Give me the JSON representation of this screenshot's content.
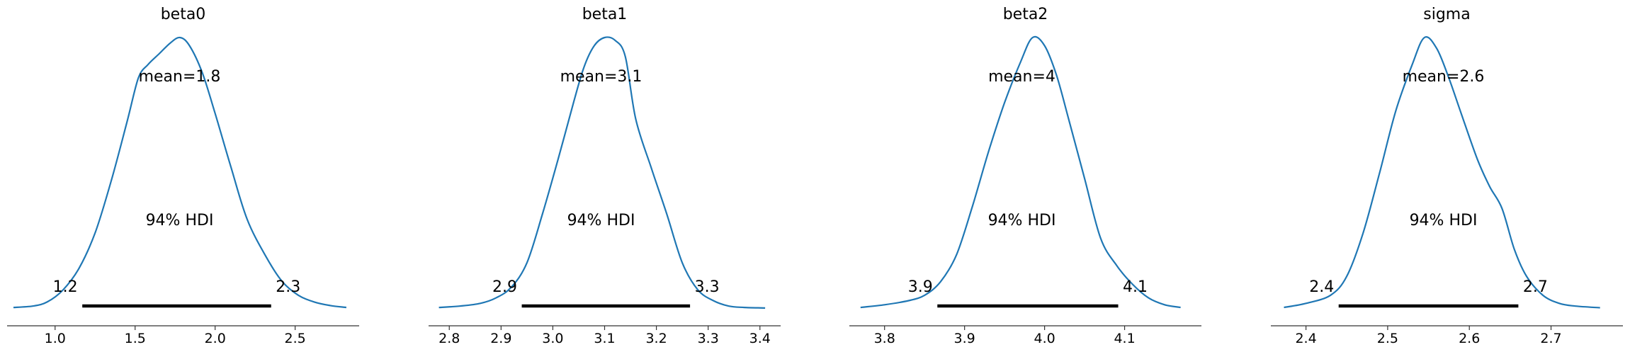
{
  "chart_data": [
    {
      "type": "line",
      "title": "beta0",
      "mean_label": "mean=1.8",
      "hdi_label": "94% HDI",
      "hdi": [
        1.17,
        2.35
      ],
      "hdi_low_label": "1.2",
      "hdi_high_label": "2.3",
      "xlim": [
        0.7,
        2.9
      ],
      "ticks": [
        1.0,
        1.5,
        2.0,
        2.5
      ],
      "tick_labels": [
        "1.0",
        "1.5",
        "2.0",
        "2.5"
      ],
      "color": "#1f77b4",
      "series": [
        {
          "x": [
            0.74,
            0.86,
            0.95,
            1.05,
            1.15,
            1.25,
            1.35,
            1.45,
            1.52,
            1.58,
            1.65,
            1.72,
            1.78,
            1.84,
            1.92,
            2.0,
            2.1,
            2.2,
            2.32,
            2.42,
            2.52,
            2.62,
            2.72,
            2.82
          ],
          "y": [
            0.005,
            0.01,
            0.025,
            0.07,
            0.15,
            0.28,
            0.47,
            0.69,
            0.85,
            0.9,
            0.94,
            0.98,
            1.0,
            0.97,
            0.87,
            0.72,
            0.52,
            0.33,
            0.19,
            0.1,
            0.05,
            0.025,
            0.012,
            0.005
          ]
        }
      ]
    },
    {
      "type": "line",
      "title": "beta1",
      "mean_label": "mean=3.1",
      "hdi_label": "94% HDI",
      "hdi": [
        2.94,
        3.265
      ],
      "hdi_low_label": "2.9",
      "hdi_high_label": "3.3",
      "xlim": [
        2.76,
        3.44
      ],
      "ticks": [
        2.8,
        2.9,
        3.0,
        3.1,
        3.2,
        3.3,
        3.4
      ],
      "tick_labels": [
        "2.8",
        "2.9",
        "3.0",
        "3.1",
        "3.2",
        "3.3",
        "3.4"
      ],
      "color": "#1f77b4",
      "series": [
        {
          "x": [
            2.78,
            2.82,
            2.86,
            2.89,
            2.92,
            2.95,
            2.98,
            3.01,
            3.04,
            3.06,
            3.08,
            3.1,
            3.12,
            3.14,
            3.16,
            3.19,
            3.22,
            3.25,
            3.28,
            3.31,
            3.34,
            3.37,
            3.41
          ],
          "y": [
            0.005,
            0.01,
            0.02,
            0.04,
            0.08,
            0.17,
            0.35,
            0.55,
            0.76,
            0.89,
            0.97,
            1.0,
            0.99,
            0.93,
            0.7,
            0.52,
            0.35,
            0.17,
            0.07,
            0.03,
            0.01,
            0.005,
            0.003
          ]
        }
      ]
    },
    {
      "type": "line",
      "title": "beta2",
      "mean_label": "mean=4",
      "hdi_label": "94% HDI",
      "hdi": [
        3.866,
        4.092
      ],
      "hdi_low_label": "3.9",
      "hdi_high_label": "4.1",
      "xlim": [
        3.756,
        4.196
      ],
      "ticks": [
        3.8,
        3.9,
        4.0,
        4.1
      ],
      "tick_labels": [
        "3.8",
        "3.9",
        "4.0",
        "4.1"
      ],
      "color": "#1f77b4",
      "series": [
        {
          "x": [
            3.77,
            3.8,
            3.83,
            3.85,
            3.87,
            3.89,
            3.91,
            3.93,
            3.95,
            3.97,
            3.985,
            4.0,
            4.015,
            4.03,
            4.05,
            4.07,
            4.09,
            4.11,
            4.13,
            4.15,
            4.17
          ],
          "y": [
            0.005,
            0.015,
            0.03,
            0.05,
            0.1,
            0.2,
            0.38,
            0.58,
            0.76,
            0.91,
            1.0,
            0.97,
            0.86,
            0.7,
            0.48,
            0.26,
            0.16,
            0.09,
            0.04,
            0.015,
            0.005
          ]
        }
      ]
    },
    {
      "type": "line",
      "title": "sigma",
      "mean_label": "mean=2.6",
      "hdi_label": "94% HDI",
      "hdi": [
        2.44,
        2.66
      ],
      "hdi_low_label": "2.4",
      "hdi_high_label": "2.7",
      "xlim": [
        2.357,
        2.788
      ],
      "ticks": [
        2.4,
        2.5,
        2.6,
        2.7
      ],
      "tick_labels": [
        "2.4",
        "2.5",
        "2.6",
        "2.7"
      ],
      "color": "#1f77b4",
      "series": [
        {
          "x": [
            2.373,
            2.4,
            2.43,
            2.45,
            2.47,
            2.49,
            2.51,
            2.53,
            2.545,
            2.56,
            2.575,
            2.59,
            2.61,
            2.625,
            2.64,
            2.655,
            2.67,
            2.69,
            2.71,
            2.73,
            2.76
          ],
          "y": [
            0.005,
            0.02,
            0.05,
            0.12,
            0.28,
            0.5,
            0.73,
            0.9,
            1.0,
            0.96,
            0.85,
            0.72,
            0.55,
            0.45,
            0.37,
            0.22,
            0.12,
            0.05,
            0.02,
            0.01,
            0.004
          ]
        }
      ]
    }
  ]
}
